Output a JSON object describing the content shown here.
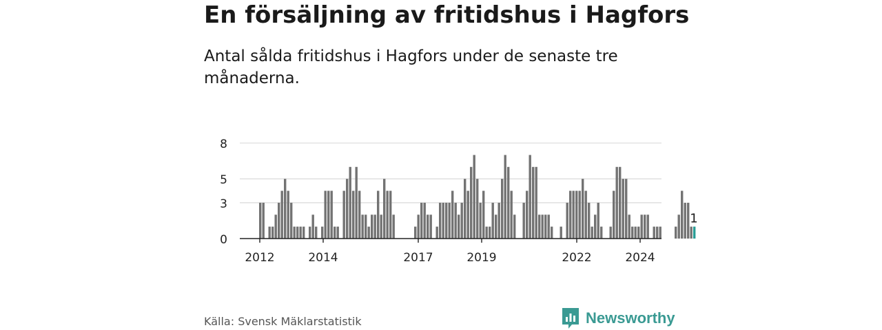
{
  "title": "En försäljning av fritidshus i Hagfors",
  "subtitle": "Antal sålda fritidshus i Hagfors under de senaste tre månaderna.",
  "source": "Källa: Svensk Mäklarstatistik",
  "brand": "Newsworthy",
  "colors": {
    "bar": "#737373",
    "highlight": "#2a9d96",
    "grid": "#d9d9d9",
    "axis": "#222222",
    "brand": "#3a9a93"
  },
  "chart_data": {
    "type": "bar",
    "title": "",
    "xlabel": "",
    "ylabel": "",
    "ylim": [
      0,
      9.5
    ],
    "yticks": [
      0,
      3,
      5,
      8
    ],
    "xticks": [
      "2012",
      "2014",
      "2017",
      "2019",
      "2022",
      "2024"
    ],
    "grid": true,
    "values": [
      3,
      3,
      0,
      1,
      1,
      2,
      3,
      4,
      5,
      4,
      3,
      1,
      1,
      1,
      1,
      0,
      1,
      2,
      1,
      0,
      1,
      4,
      4,
      4,
      1,
      1,
      0,
      4,
      5,
      6,
      4,
      6,
      4,
      2,
      2,
      1,
      2,
      2,
      4,
      2,
      5,
      4,
      4,
      2,
      0,
      0,
      0,
      0,
      0,
      0,
      1,
      2,
      3,
      3,
      2,
      2,
      0,
      1,
      3,
      3,
      3,
      3,
      4,
      3,
      2,
      3,
      5,
      4,
      6,
      7,
      5,
      3,
      4,
      1,
      1,
      3,
      2,
      3,
      5,
      7,
      6,
      4,
      2,
      0,
      0,
      3,
      4,
      7,
      6,
      6,
      2,
      2,
      2,
      2,
      1,
      0,
      0,
      1,
      0,
      3,
      4,
      4,
      4,
      4,
      5,
      4,
      3,
      1,
      2,
      3,
      1,
      0,
      0,
      1,
      4,
      6,
      6,
      5,
      5,
      2,
      1,
      1,
      1,
      2,
      2,
      2,
      0,
      1,
      1,
      1,
      0,
      0,
      0,
      0,
      1,
      2,
      4,
      3,
      3,
      1,
      1
    ],
    "highlight_label": "1"
  }
}
